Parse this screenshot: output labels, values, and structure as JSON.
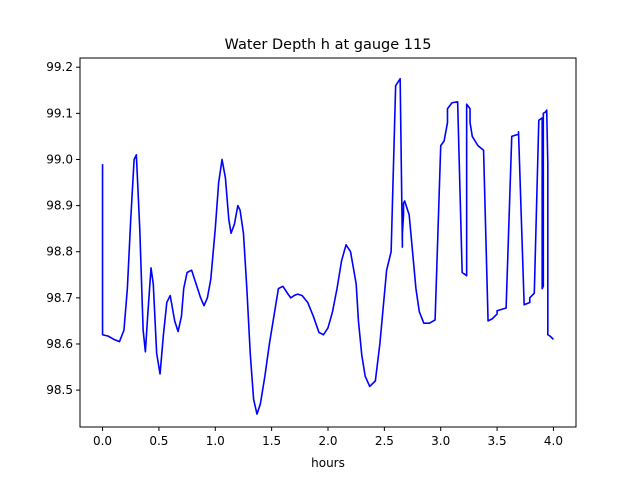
{
  "chart_data": {
    "type": "line",
    "title": "Water Depth h at gauge 115",
    "xlabel": "hours",
    "ylabel": "",
    "xlim": [
      -0.2,
      4.2
    ],
    "ylim": [
      98.42,
      99.22
    ],
    "xticks": [
      "0.0",
      "0.5",
      "1.0",
      "1.5",
      "2.0",
      "2.5",
      "3.0",
      "3.5",
      "4.0"
    ],
    "yticks": [
      "98.5",
      "98.6",
      "98.7",
      "98.8",
      "98.9",
      "99.0",
      "99.1",
      "99.2"
    ],
    "grid": false,
    "series": [
      {
        "color": "#0000ff",
        "x": [
          0.0,
          0.0,
          0.05,
          0.1,
          0.15,
          0.19,
          0.22,
          0.25,
          0.28,
          0.3,
          0.33,
          0.36,
          0.38,
          0.4,
          0.43,
          0.45,
          0.48,
          0.51,
          0.54,
          0.57,
          0.6,
          0.64,
          0.67,
          0.7,
          0.72,
          0.75,
          0.79,
          0.83,
          0.87,
          0.9,
          0.93,
          0.96,
          1.0,
          1.03,
          1.06,
          1.09,
          1.12,
          1.14,
          1.17,
          1.2,
          1.22,
          1.25,
          1.28,
          1.31,
          1.34,
          1.37,
          1.4,
          1.44,
          1.48,
          1.52,
          1.56,
          1.6,
          1.64,
          1.67,
          1.7,
          1.73,
          1.77,
          1.82,
          1.87,
          1.92,
          1.96,
          2.0,
          2.04,
          2.08,
          2.12,
          2.16,
          2.2,
          2.25,
          2.27,
          2.3,
          2.33,
          2.37,
          2.42,
          2.46,
          2.49,
          2.52,
          2.56,
          2.6,
          2.64,
          2.66,
          2.66,
          2.67,
          2.67,
          2.68,
          2.72,
          2.75,
          2.78,
          2.81,
          2.85,
          2.9,
          2.95,
          3.0,
          3.03,
          3.06,
          3.06,
          3.1,
          3.15,
          3.19,
          3.22,
          3.23,
          3.23,
          3.26,
          3.26,
          3.28,
          3.33,
          3.38,
          3.42,
          3.46,
          3.5,
          3.5,
          3.54,
          3.58,
          3.63,
          3.69,
          3.69,
          3.74,
          3.79,
          3.79,
          3.83,
          3.87,
          3.9,
          3.9,
          3.91,
          3.91,
          3.93,
          3.94,
          3.95,
          3.95,
          3.97,
          4.0
        ],
        "y": [
          98.99,
          98.62,
          98.617,
          98.61,
          98.605,
          98.63,
          98.72,
          98.87,
          99.0,
          99.01,
          98.85,
          98.63,
          98.583,
          98.66,
          98.765,
          98.73,
          98.58,
          98.535,
          98.62,
          98.69,
          98.705,
          98.65,
          98.627,
          98.66,
          98.72,
          98.755,
          98.76,
          98.73,
          98.7,
          98.683,
          98.7,
          98.74,
          98.85,
          98.95,
          99.0,
          98.96,
          98.87,
          98.84,
          98.86,
          98.9,
          98.89,
          98.84,
          98.72,
          98.58,
          98.48,
          98.448,
          98.47,
          98.53,
          98.6,
          98.66,
          98.72,
          98.725,
          98.71,
          98.7,
          98.705,
          98.708,
          98.705,
          98.69,
          98.66,
          98.625,
          98.62,
          98.635,
          98.67,
          98.72,
          98.78,
          98.815,
          98.8,
          98.73,
          98.65,
          98.575,
          98.53,
          98.508,
          98.52,
          98.6,
          98.68,
          98.76,
          98.8,
          99.16,
          99.175,
          98.81,
          98.84,
          98.88,
          98.905,
          98.91,
          98.88,
          98.8,
          98.72,
          98.67,
          98.645,
          98.645,
          98.652,
          99.03,
          99.04,
          99.08,
          99.11,
          99.123,
          99.125,
          98.755,
          98.75,
          98.748,
          99.12,
          99.11,
          99.08,
          99.05,
          99.03,
          99.02,
          98.65,
          98.655,
          98.665,
          98.672,
          98.675,
          98.678,
          99.05,
          99.055,
          99.06,
          98.685,
          98.69,
          98.7,
          98.71,
          99.085,
          99.09,
          98.72,
          98.725,
          99.1,
          99.103,
          99.107,
          98.99,
          98.62,
          98.617,
          98.61
        ]
      }
    ]
  }
}
